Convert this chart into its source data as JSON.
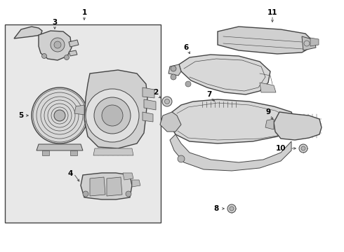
{
  "bg_color": "#ffffff",
  "box_bg": "#e8e8e8",
  "line_color": "#444444",
  "label_color": "#000000",
  "lw": 0.7,
  "lw_thick": 1.0
}
